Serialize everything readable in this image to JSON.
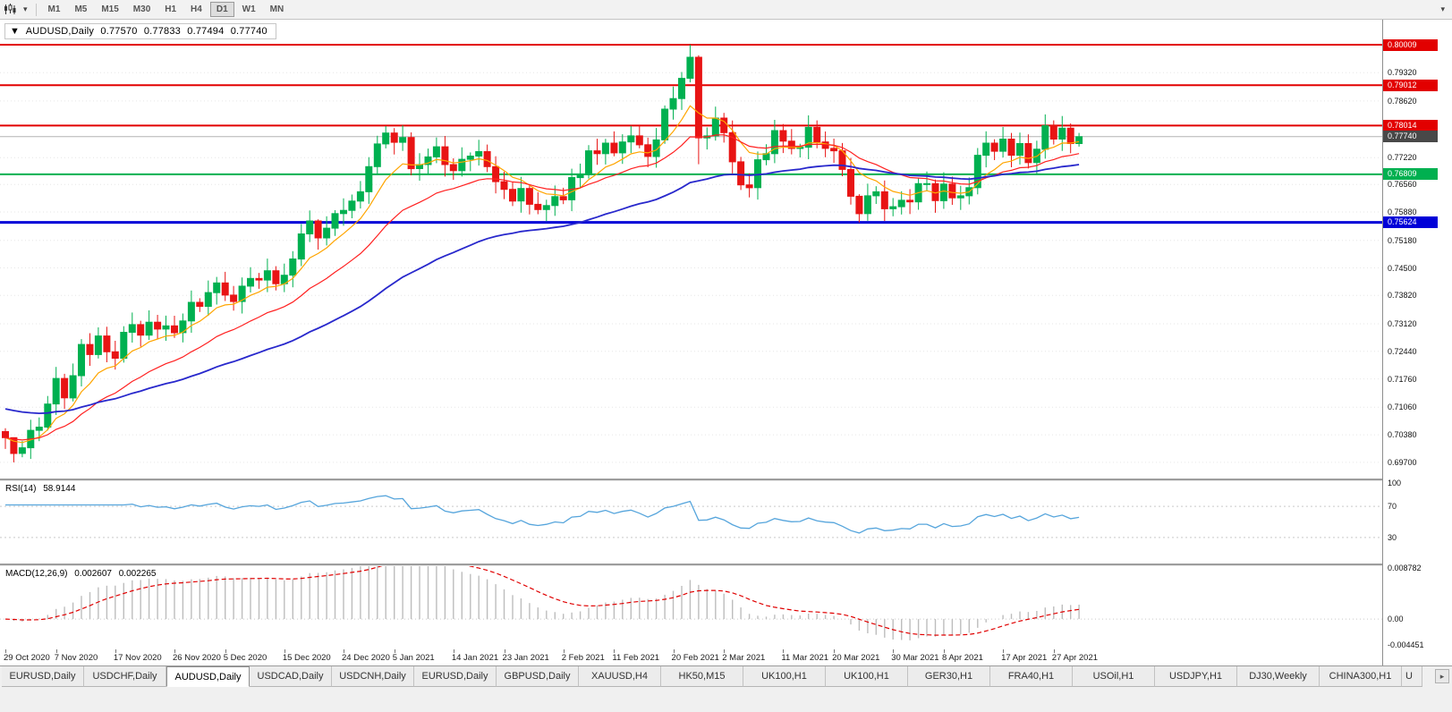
{
  "toolbar": {
    "dropdown_caret": "▾",
    "overflow_glyph": "▾",
    "timeframes": [
      "M1",
      "M5",
      "M15",
      "M30",
      "H1",
      "H4",
      "D1",
      "W1",
      "MN"
    ],
    "active_timeframe": "D1"
  },
  "main_chart": {
    "header": {
      "collapse_glyph": "▼",
      "symbol": "AUDUSD,Daily",
      "open": "0.77570",
      "high": "0.77833",
      "low": "0.77494",
      "close": "0.77740"
    },
    "price_scale": {
      "top": 0.8065,
      "bottom": 0.693,
      "ticks": [
        "0.79320",
        "0.78620",
        "0.77220",
        "0.76560",
        "0.75880",
        "0.75180",
        "0.74500",
        "0.73820",
        "0.73120",
        "0.72440",
        "0.71760",
        "0.71060",
        "0.70380",
        "0.69700"
      ]
    },
    "levels": [
      {
        "price": 0.80009,
        "label": "0.80009",
        "color": "#e20000",
        "width": 2
      },
      {
        "price": 0.79012,
        "label": "0.79012",
        "color": "#e20000",
        "width": 2
      },
      {
        "price": 0.78014,
        "label": "0.78014",
        "color": "#e20000",
        "width": 2
      },
      {
        "price": 0.76809,
        "label": "0.76809",
        "color": "#00b050",
        "width": 2
      },
      {
        "price": 0.75624,
        "label": "0.75624",
        "color": "#0000d8",
        "width": 3
      }
    ],
    "bid_line": {
      "price": 0.7774,
      "label": "0.77740",
      "line_color": "#b4b4b4",
      "tag_color": "#484848"
    }
  },
  "chart_data": {
    "type": "candlestick",
    "symbol": "AUDUSD",
    "timeframe": "Daily",
    "first_open": 0.7046,
    "closes": [
      0.7031,
      0.6992,
      0.7006,
      0.7049,
      0.7057,
      0.7114,
      0.7177,
      0.7129,
      0.7184,
      0.7261,
      0.7236,
      0.7282,
      0.7243,
      0.7227,
      0.7291,
      0.731,
      0.7284,
      0.7316,
      0.7299,
      0.7307,
      0.729,
      0.7319,
      0.7365,
      0.7355,
      0.7389,
      0.7413,
      0.7383,
      0.7367,
      0.7405,
      0.7424,
      0.742,
      0.7443,
      0.7411,
      0.7432,
      0.7472,
      0.7534,
      0.7566,
      0.7524,
      0.7548,
      0.7584,
      0.7592,
      0.7615,
      0.7638,
      0.77,
      0.7756,
      0.7783,
      0.776,
      0.7772,
      0.7695,
      0.7705,
      0.7724,
      0.7749,
      0.7705,
      0.769,
      0.7718,
      0.7726,
      0.7737,
      0.77,
      0.7663,
      0.7644,
      0.7615,
      0.7646,
      0.7607,
      0.7594,
      0.7604,
      0.7626,
      0.7618,
      0.7673,
      0.768,
      0.7739,
      0.7732,
      0.7758,
      0.7734,
      0.7761,
      0.7776,
      0.7754,
      0.7725,
      0.7766,
      0.7842,
      0.7868,
      0.7918,
      0.797,
      0.7771,
      0.7776,
      0.782,
      0.7784,
      0.7712,
      0.7655,
      0.7648,
      0.7717,
      0.7732,
      0.7789,
      0.7763,
      0.7745,
      0.7748,
      0.7797,
      0.7761,
      0.7745,
      0.7739,
      0.7693,
      0.7627,
      0.7584,
      0.7628,
      0.7638,
      0.7596,
      0.7601,
      0.7617,
      0.7613,
      0.7658,
      0.7658,
      0.7616,
      0.7657,
      0.7623,
      0.7628,
      0.7648,
      0.7728,
      0.7758,
      0.7738,
      0.7768,
      0.7728,
      0.7757,
      0.771,
      0.7743,
      0.7801,
      0.7768,
      0.7795,
      0.7757,
      0.7774
    ],
    "wick_overrides": {
      "1": [
        0.7012,
        0.697
      ],
      "37": [
        0.757,
        0.7495
      ],
      "45": [
        0.78,
        0.7745
      ],
      "81": [
        0.8001,
        0.7908
      ],
      "82": [
        0.7975,
        0.7706
      ],
      "101": [
        0.7632,
        0.7562
      ],
      "127": [
        0.77833,
        0.77494
      ]
    },
    "colors": {
      "up": "#00b050",
      "down": "#e81414"
    },
    "moving_averages": [
      {
        "name": "ma-fast",
        "color": "#ffa500",
        "period": 8,
        "width": 1.2
      },
      {
        "name": "ma-medium",
        "color": "#ff2020",
        "period": 20,
        "width": 1.2
      },
      {
        "name": "ma-slow",
        "color": "#2828cc",
        "period": 50,
        "width": 1.8,
        "seed": 0.7105
      }
    ]
  },
  "rsi_pane": {
    "header_name": "RSI(14)",
    "header_value": "58.9144",
    "period": 14,
    "line_color": "#56a5dc",
    "level_lines": [
      70,
      30
    ],
    "scale_labels": [
      {
        "value": 100,
        "label": "100"
      },
      {
        "value": 70,
        "label": "70"
      },
      {
        "value": 30,
        "label": "30"
      }
    ]
  },
  "macd_pane": {
    "header_name": "MACD(12,26,9)",
    "macd_value": "0.002607",
    "signal_value": "0.002265",
    "fast": 12,
    "slow": 26,
    "signal": 9,
    "histogram_color": "#bdbdbd",
    "signal_color": "#e00000",
    "scale_max": 0.008782,
    "scale_min": -0.004451,
    "scale_labels": [
      {
        "value": 0.008782,
        "label": "0.008782"
      },
      {
        "value": 0,
        "label": "0.00"
      },
      {
        "value": -0.004451,
        "label": "-0.004451"
      }
    ]
  },
  "date_axis": [
    {
      "label": "29 Oct 2020",
      "index": 0
    },
    {
      "label": "7 Nov 2020",
      "index": 6
    },
    {
      "label": "17 Nov 2020",
      "index": 13
    },
    {
      "label": "26 Nov 2020",
      "index": 20
    },
    {
      "label": "5 Dec 2020",
      "index": 26
    },
    {
      "label": "15 Dec 2020",
      "index": 33
    },
    {
      "label": "24 Dec 2020",
      "index": 40
    },
    {
      "label": "5 Jan 2021",
      "index": 46
    },
    {
      "label": "14 Jan 2021",
      "index": 53
    },
    {
      "label": "23 Jan 2021",
      "index": 59
    },
    {
      "label": "2 Feb 2021",
      "index": 66
    },
    {
      "label": "11 Feb 2021",
      "index": 72
    },
    {
      "label": "20 Feb 2021",
      "index": 79
    },
    {
      "label": "2 Mar 2021",
      "index": 85
    },
    {
      "label": "11 Mar 2021",
      "index": 92
    },
    {
      "label": "20 Mar 2021",
      "index": 98
    },
    {
      "label": "30 Mar 2021",
      "index": 105
    },
    {
      "label": "8 Apr 2021",
      "index": 111
    },
    {
      "label": "17 Apr 2021",
      "index": 118
    },
    {
      "label": "27 Apr 2021",
      "index": 124
    }
  ],
  "tab_bar": {
    "active_index": 2,
    "scroll_right_glyph": "▸",
    "tabs": [
      {
        "label": "EURUSD,Daily"
      },
      {
        "label": "USDCHF,Daily"
      },
      {
        "label": "AUDUSD,Daily"
      },
      {
        "label": "USDCAD,Daily"
      },
      {
        "label": "USDCNH,Daily"
      },
      {
        "label": "EURUSD,Daily"
      },
      {
        "label": "GBPUSD,Daily"
      },
      {
        "label": "XAUUSD,H4"
      },
      {
        "label": "HK50,M15"
      },
      {
        "label": "UK100,H1"
      },
      {
        "label": "UK100,H1"
      },
      {
        "label": "GER30,H1"
      },
      {
        "label": "FRA40,H1"
      },
      {
        "label": "USOil,H1"
      },
      {
        "label": "USDJPY,H1"
      },
      {
        "label": "DJ30,Weekly"
      },
      {
        "label": "CHINA300,H1"
      },
      {
        "label": "U",
        "partial": true
      }
    ]
  }
}
